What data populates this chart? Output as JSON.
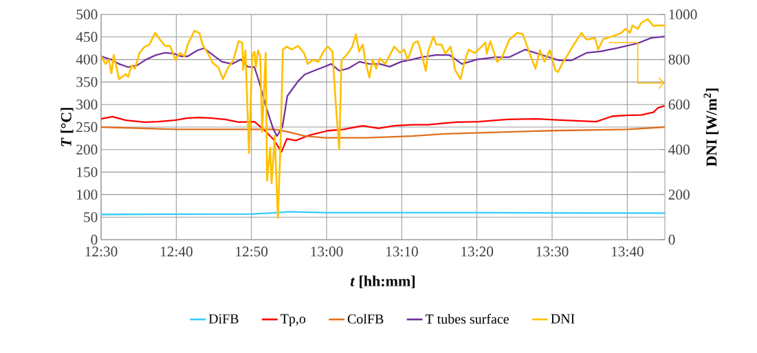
{
  "chart_data": {
    "type": "line",
    "xlabel": "*t* [hh:mm]",
    "ylabel": "*T* [°C]",
    "y2label": "DNI [W/m$^{2}$]",
    "xlim": [
      12.5,
      13.75
    ],
    "xticks": [
      {
        "value": 12.5,
        "label": "12:30"
      },
      {
        "value": 12.6667,
        "label": "12:40"
      },
      {
        "value": 12.8333,
        "label": "12:50"
      },
      {
        "value": 13.0,
        "label": "13:00"
      },
      {
        "value": 13.1667,
        "label": "13:10"
      },
      {
        "value": 13.3333,
        "label": "13:20"
      },
      {
        "value": 13.5,
        "label": "13:30"
      },
      {
        "value": 13.6667,
        "label": "13:40"
      }
    ],
    "ylim": [
      0,
      500
    ],
    "yticks": [
      0,
      50,
      100,
      150,
      200,
      250,
      300,
      350,
      400,
      450,
      500
    ],
    "y2lim": [
      0,
      1000
    ],
    "y2ticks": [
      0,
      200,
      400,
      600,
      800,
      1000
    ],
    "grid": true,
    "legend": "bottom",
    "series": [
      {
        "name": "DiFB",
        "color": "#33ccff",
        "x": [
          12.5,
          12.833,
          12.892,
          12.917,
          13.0,
          13.333,
          13.75
        ],
        "values": [
          56,
          57,
          60,
          62,
          60,
          60,
          59
        ]
      },
      {
        "name": "Tp,o",
        "color": "#ff0000",
        "x": [
          12.5,
          12.525,
          12.555,
          12.597,
          12.627,
          12.662,
          12.692,
          12.718,
          12.743,
          12.775,
          12.805,
          12.84,
          12.86,
          12.882,
          12.9,
          12.912,
          12.932,
          12.962,
          13.003,
          13.038,
          13.08,
          13.115,
          13.15,
          13.19,
          13.225,
          13.287,
          13.338,
          13.4,
          13.465,
          13.527,
          13.598,
          13.633,
          13.668,
          13.698,
          13.725,
          13.735,
          13.75
        ],
        "values": [
          268,
          273,
          265,
          261,
          262,
          265,
          270,
          271,
          270,
          267,
          261,
          262,
          245,
          223,
          195,
          224,
          220,
          232,
          242,
          245,
          253,
          247,
          253,
          255,
          255,
          261,
          262,
          267,
          268,
          265,
          262,
          274,
          276,
          277,
          283,
          293,
          297
        ]
      },
      {
        "name": "ColFB",
        "color": "#e07020",
        "x": [
          12.5,
          12.667,
          12.835,
          12.885,
          12.912,
          12.952,
          12.997,
          13.088,
          13.19,
          13.262,
          13.5,
          13.668,
          13.75
        ],
        "values": [
          250,
          245,
          245,
          245,
          240,
          230,
          226,
          226,
          230,
          235,
          242,
          245,
          250
        ]
      },
      {
        "name": "T tubes surface",
        "color": "#7030a0",
        "x": [
          12.5,
          12.522,
          12.54,
          12.56,
          12.58,
          12.6,
          12.622,
          12.642,
          12.662,
          12.677,
          12.692,
          12.713,
          12.728,
          12.748,
          12.768,
          12.79,
          12.81,
          12.825,
          12.84,
          12.85,
          12.867,
          12.882,
          12.89,
          12.902,
          12.913,
          12.937,
          12.952,
          12.977,
          12.993,
          13.01,
          13.028,
          13.048,
          13.073,
          13.095,
          13.118,
          13.14,
          13.165,
          13.19,
          13.21,
          13.242,
          13.272,
          13.3,
          13.333,
          13.373,
          13.405,
          13.44,
          13.477,
          13.515,
          13.543,
          13.577,
          13.607,
          13.643,
          13.69,
          13.72,
          13.75
        ],
        "values": [
          407,
          400,
          390,
          383,
          387,
          400,
          410,
          415,
          413,
          407,
          407,
          420,
          425,
          410,
          395,
          390,
          400,
          384,
          383,
          352,
          291,
          245,
          230,
          250,
          319,
          352,
          367,
          377,
          383,
          390,
          375,
          380,
          395,
          390,
          390,
          384,
          395,
          400,
          405,
          410,
          410,
          390,
          400,
          405,
          405,
          422,
          410,
          398,
          398,
          415,
          418,
          425,
          436,
          448,
          451
        ]
      },
      {
        "name": "DNI",
        "color": "#ffc000",
        "axis": "y2",
        "x": [
          12.5,
          12.51,
          12.517,
          12.523,
          12.528,
          12.54,
          12.555,
          12.56,
          12.568,
          12.575,
          12.585,
          12.597,
          12.607,
          12.62,
          12.63,
          12.642,
          12.653,
          12.665,
          12.675,
          12.685,
          12.692,
          12.707,
          12.718,
          12.725,
          12.737,
          12.748,
          12.76,
          12.77,
          12.782,
          12.793,
          12.805,
          12.813,
          12.815,
          12.82,
          12.828,
          12.835,
          12.84,
          12.843,
          12.848,
          12.853,
          12.857,
          12.86,
          12.865,
          12.868,
          12.875,
          12.878,
          12.885,
          12.892,
          12.898,
          12.903,
          12.912,
          12.922,
          12.937,
          12.95,
          12.958,
          12.97,
          12.982,
          12.993,
          13.003,
          13.013,
          13.02,
          13.028,
          13.033,
          13.048,
          13.057,
          13.065,
          13.072,
          13.08,
          13.087,
          13.095,
          13.102,
          13.11,
          13.118,
          13.13,
          13.15,
          13.163,
          13.172,
          13.18,
          13.193,
          13.202,
          13.208,
          13.22,
          13.225,
          13.237,
          13.243,
          13.255,
          13.263,
          13.275,
          13.285,
          13.297,
          13.305,
          13.315,
          13.328,
          13.34,
          13.352,
          13.355,
          13.363,
          13.378,
          13.388,
          13.405,
          13.415,
          13.423,
          13.435,
          13.45,
          13.463,
          13.473,
          13.483,
          13.495,
          13.507,
          13.513,
          13.523,
          13.537,
          13.548,
          13.565,
          13.575,
          13.583,
          13.595,
          13.602,
          13.613,
          13.637,
          13.653,
          13.663,
          13.673,
          13.678,
          13.69,
          13.698,
          13.712,
          13.725,
          13.735,
          13.75
        ],
        "values": [
          815,
          780,
          800,
          738,
          820,
          713,
          735,
          723,
          774,
          759,
          829,
          857,
          866,
          918,
          890,
          860,
          860,
          799,
          829,
          814,
          866,
          927,
          918,
          866,
          826,
          784,
          765,
          713,
          765,
          796,
          881,
          875,
          753,
          841,
          384,
          814,
          835,
          765,
          841,
          814,
          479,
          613,
          829,
          262,
          408,
          250,
          460,
          98,
          430,
          844,
          857,
          844,
          860,
          829,
          780,
          799,
          790,
          835,
          857,
          835,
          613,
          402,
          796,
          829,
          857,
          912,
          835,
          866,
          784,
          720,
          799,
          759,
          805,
          780,
          857,
          829,
          844,
          799,
          872,
          881,
          844,
          750,
          835,
          902,
          866,
          866,
          826,
          857,
          753,
          713,
          784,
          844,
          829,
          850,
          875,
          826,
          881,
          790,
          805,
          887,
          905,
          918,
          912,
          829,
          759,
          841,
          790,
          841,
          753,
          744,
          784,
          829,
          866,
          918,
          890,
          890,
          896,
          844,
          890,
          905,
          918,
          936,
          918,
          951,
          936,
          963,
          979,
          948,
          951,
          951
        ]
      }
    ]
  }
}
